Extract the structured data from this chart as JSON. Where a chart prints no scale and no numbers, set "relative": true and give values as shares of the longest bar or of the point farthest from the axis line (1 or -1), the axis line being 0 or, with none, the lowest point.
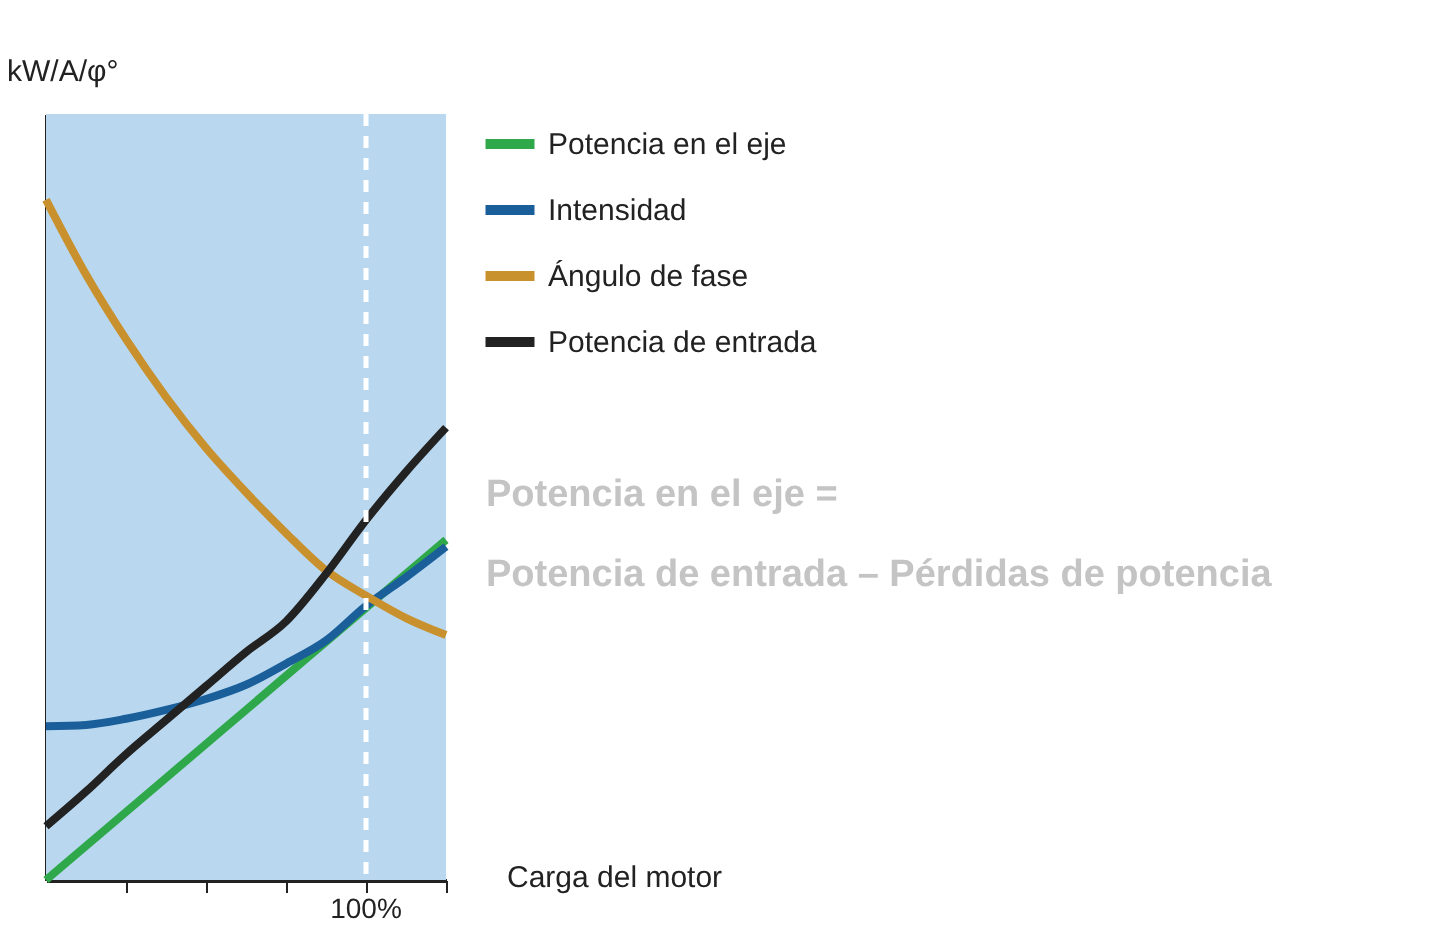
{
  "chart_data": {
    "type": "line",
    "relative": true,
    "ylabel": "kW/A/φ°",
    "xlabel": "Carga del motor",
    "categories": [
      null,
      null,
      null,
      null,
      null,
      null,
      null,
      null,
      null,
      null,
      null
    ],
    "series": [
      {
        "name": "Potencia en el eje",
        "color": "#2ea84a",
        "values": [
          0.0,
          0.05,
          0.1,
          0.15,
          0.2,
          0.25,
          0.3,
          0.35,
          0.4,
          0.45,
          0.5
        ]
      },
      {
        "name": "Intensidad",
        "color": "#1a5e9a",
        "values": [
          0.226,
          0.228,
          0.237,
          0.25,
          0.266,
          0.287,
          0.318,
          0.352,
          0.403,
          0.445,
          0.49
        ]
      },
      {
        "name": "Ángulo de fase",
        "color": "#c8912e",
        "values": [
          1.0,
          0.89,
          0.795,
          0.71,
          0.635,
          0.57,
          0.51,
          0.455,
          0.418,
          0.385,
          0.36
        ]
      },
      {
        "name": "Potencia de entrada",
        "color": "#222222",
        "values": [
          0.079,
          0.13,
          0.185,
          0.235,
          0.285,
          0.335,
          0.38,
          0.45,
          0.529,
          0.6,
          0.665
        ]
      }
    ],
    "annotations": [
      "100%",
      "Potencia en el eje =",
      "Potencia de entrada – Pérdidas de potencia"
    ],
    "legend": "right",
    "grid": false,
    "marker": "none",
    "line_style": "solid"
  }
}
